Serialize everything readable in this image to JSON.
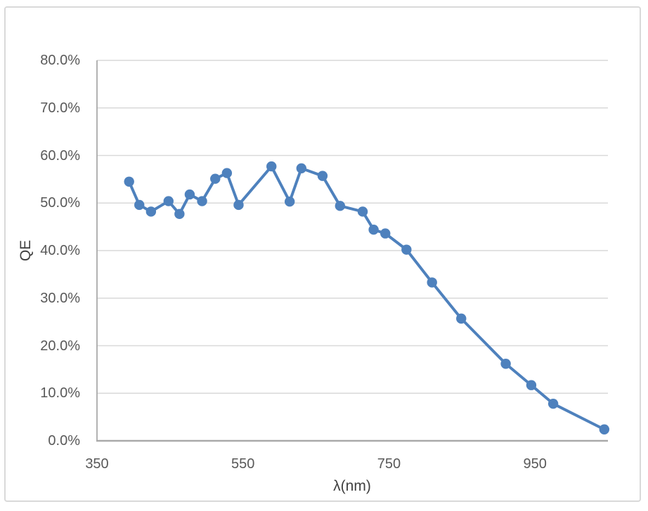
{
  "chart_data": {
    "type": "line",
    "title": "",
    "xlabel": "λ(nm)",
    "ylabel": "QE",
    "series": [
      {
        "name": "QE",
        "x_nm": [
          394,
          408,
          424,
          448,
          463,
          477,
          494,
          512,
          528,
          544,
          589,
          614,
          630,
          659,
          683,
          714,
          729,
          745,
          774,
          809,
          849,
          910,
          945,
          975,
          1045
        ],
        "qe_percent": [
          54.5,
          49.6,
          48.2,
          50.4,
          47.7,
          51.8,
          50.4,
          55.1,
          56.3,
          49.6,
          57.7,
          50.3,
          57.3,
          55.7,
          49.4,
          48.2,
          44.4,
          43.6,
          40.2,
          33.3,
          25.7,
          16.2,
          11.7,
          7.8,
          2.4
        ]
      }
    ],
    "x_range": [
      350,
      1050
    ],
    "y_range_percent": [
      0,
      80
    ],
    "x_tick_values": [
      350,
      550,
      750,
      950
    ],
    "x_tick_labels": [
      "350",
      "550",
      "750",
      "950"
    ],
    "y_tick_values": [
      0,
      10,
      20,
      30,
      40,
      50,
      60,
      70,
      80
    ],
    "y_tick_labels": [
      "0.0%",
      "10.0%",
      "20.0%",
      "30.0%",
      "40.0%",
      "50.0%",
      "60.0%",
      "70.0%",
      "80.0%"
    ],
    "grid": "horizontal",
    "legend_position": "none",
    "marker": "circle",
    "colors": {
      "series": "#4E81BD",
      "gridline": "#D9D9D9",
      "axis": "#A9A9A9",
      "tick_text": "#595959",
      "title_text": "#404040",
      "chart_border": "#D9D9D9",
      "background": "#FFFFFF"
    }
  }
}
